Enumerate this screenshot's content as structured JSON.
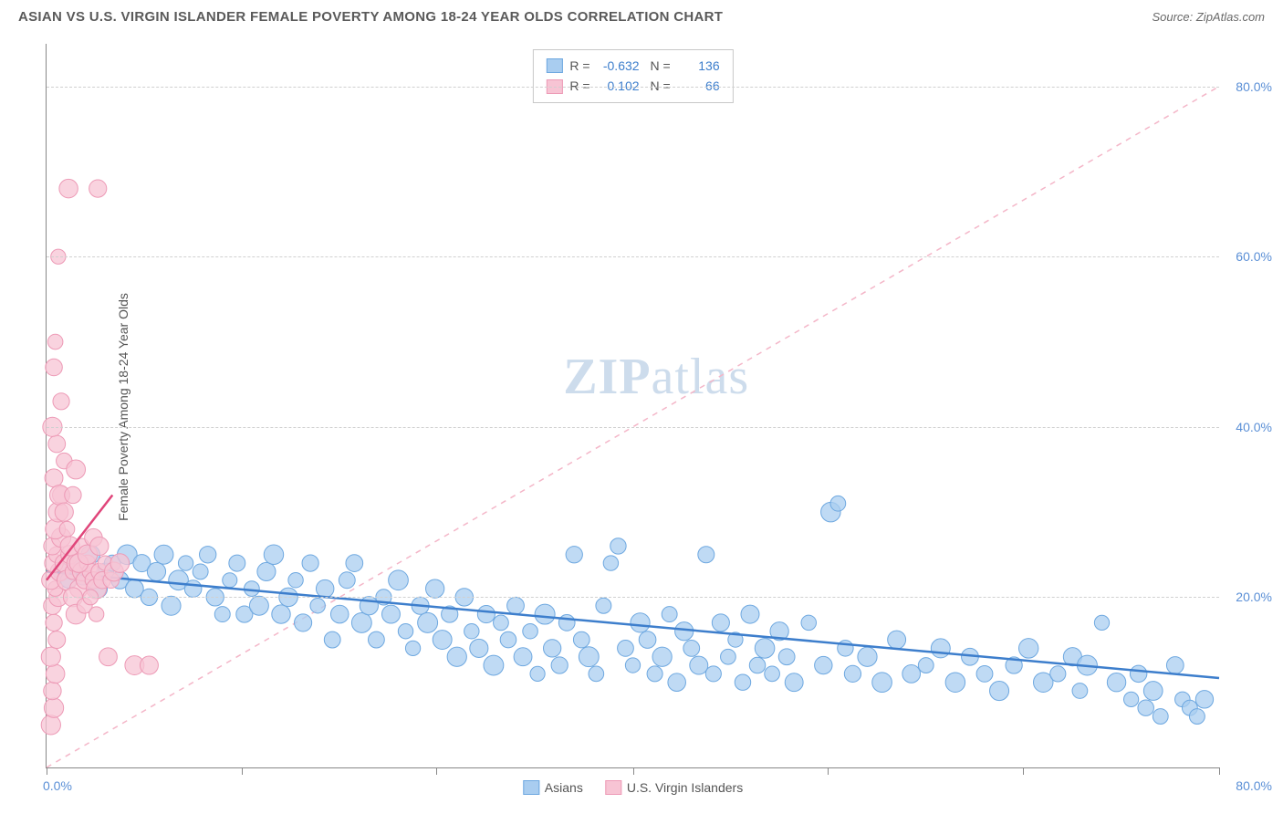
{
  "title": "ASIAN VS U.S. VIRGIN ISLANDER FEMALE POVERTY AMONG 18-24 YEAR OLDS CORRELATION CHART",
  "source": "Source: ZipAtlas.com",
  "y_axis_label": "Female Poverty Among 18-24 Year Olds",
  "watermark_a": "ZIP",
  "watermark_b": "atlas",
  "chart": {
    "type": "scatter",
    "xlim": [
      0,
      80
    ],
    "ylim": [
      0,
      85
    ],
    "x_ticks": [
      0,
      13.3,
      26.6,
      40,
      53.3,
      66.6,
      80
    ],
    "x_tick_labels_left": "0.0%",
    "x_tick_labels_right": "80.0%",
    "y_ticks": [
      20,
      40,
      60,
      80
    ],
    "y_tick_labels": [
      "20.0%",
      "40.0%",
      "60.0%",
      "80.0%"
    ],
    "background_color": "#ffffff",
    "grid_color": "#d0d0d0",
    "diagonal_color": "#f4b6c8",
    "series": [
      {
        "name": "Asians",
        "label": "Asians",
        "marker_fill": "#a9cdf0",
        "marker_stroke": "#6ea8e0",
        "marker_opacity": 0.75,
        "line_color": "#3d7ecc",
        "line_width": 2.5,
        "R": "-0.632",
        "N": "136",
        "trend": {
          "x1": 0,
          "y1": 23,
          "x2": 80,
          "y2": 10.5
        },
        "points": [
          [
            1,
            23
          ],
          [
            1.5,
            22
          ],
          [
            2,
            24
          ],
          [
            2.5,
            22.5
          ],
          [
            3,
            25
          ],
          [
            3.5,
            21
          ],
          [
            4,
            23
          ],
          [
            4.5,
            24
          ],
          [
            5,
            22
          ],
          [
            5.5,
            25
          ],
          [
            6,
            21
          ],
          [
            6.5,
            24
          ],
          [
            7,
            20
          ],
          [
            7.5,
            23
          ],
          [
            8,
            25
          ],
          [
            8.5,
            19
          ],
          [
            9,
            22
          ],
          [
            9.5,
            24
          ],
          [
            10,
            21
          ],
          [
            10.5,
            23
          ],
          [
            11,
            25
          ],
          [
            11.5,
            20
          ],
          [
            12,
            18
          ],
          [
            12.5,
            22
          ],
          [
            13,
            24
          ],
          [
            13.5,
            18
          ],
          [
            14,
            21
          ],
          [
            14.5,
            19
          ],
          [
            15,
            23
          ],
          [
            15.5,
            25
          ],
          [
            16,
            18
          ],
          [
            16.5,
            20
          ],
          [
            17,
            22
          ],
          [
            17.5,
            17
          ],
          [
            18,
            24
          ],
          [
            18.5,
            19
          ],
          [
            19,
            21
          ],
          [
            19.5,
            15
          ],
          [
            20,
            18
          ],
          [
            20.5,
            22
          ],
          [
            21,
            24
          ],
          [
            21.5,
            17
          ],
          [
            22,
            19
          ],
          [
            22.5,
            15
          ],
          [
            23,
            20
          ],
          [
            23.5,
            18
          ],
          [
            24,
            22
          ],
          [
            24.5,
            16
          ],
          [
            25,
            14
          ],
          [
            25.5,
            19
          ],
          [
            26,
            17
          ],
          [
            26.5,
            21
          ],
          [
            27,
            15
          ],
          [
            27.5,
            18
          ],
          [
            28,
            13
          ],
          [
            28.5,
            20
          ],
          [
            29,
            16
          ],
          [
            29.5,
            14
          ],
          [
            30,
            18
          ],
          [
            30.5,
            12
          ],
          [
            31,
            17
          ],
          [
            31.5,
            15
          ],
          [
            32,
            19
          ],
          [
            32.5,
            13
          ],
          [
            33,
            16
          ],
          [
            33.5,
            11
          ],
          [
            34,
            18
          ],
          [
            34.5,
            14
          ],
          [
            35,
            12
          ],
          [
            35.5,
            17
          ],
          [
            36,
            25
          ],
          [
            36.5,
            15
          ],
          [
            37,
            13
          ],
          [
            37.5,
            11
          ],
          [
            38,
            19
          ],
          [
            38.5,
            24
          ],
          [
            39,
            26
          ],
          [
            39.5,
            14
          ],
          [
            40,
            12
          ],
          [
            40.5,
            17
          ],
          [
            41,
            15
          ],
          [
            41.5,
            11
          ],
          [
            42,
            13
          ],
          [
            42.5,
            18
          ],
          [
            43,
            10
          ],
          [
            43.5,
            16
          ],
          [
            44,
            14
          ],
          [
            44.5,
            12
          ],
          [
            45,
            25
          ],
          [
            45.5,
            11
          ],
          [
            46,
            17
          ],
          [
            46.5,
            13
          ],
          [
            47,
            15
          ],
          [
            47.5,
            10
          ],
          [
            48,
            18
          ],
          [
            48.5,
            12
          ],
          [
            49,
            14
          ],
          [
            49.5,
            11
          ],
          [
            50,
            16
          ],
          [
            50.5,
            13
          ],
          [
            51,
            10
          ],
          [
            52,
            17
          ],
          [
            53,
            12
          ],
          [
            53.5,
            30
          ],
          [
            54,
            31
          ],
          [
            54.5,
            14
          ],
          [
            55,
            11
          ],
          [
            56,
            13
          ],
          [
            57,
            10
          ],
          [
            58,
            15
          ],
          [
            59,
            11
          ],
          [
            60,
            12
          ],
          [
            61,
            14
          ],
          [
            62,
            10
          ],
          [
            63,
            13
          ],
          [
            64,
            11
          ],
          [
            65,
            9
          ],
          [
            66,
            12
          ],
          [
            67,
            14
          ],
          [
            68,
            10
          ],
          [
            69,
            11
          ],
          [
            70,
            13
          ],
          [
            70.5,
            9
          ],
          [
            71,
            12
          ],
          [
            72,
            17
          ],
          [
            73,
            10
          ],
          [
            74,
            8
          ],
          [
            74.5,
            11
          ],
          [
            75,
            7
          ],
          [
            75.5,
            9
          ],
          [
            76,
            6
          ],
          [
            77,
            12
          ],
          [
            77.5,
            8
          ],
          [
            78,
            7
          ],
          [
            78.5,
            6
          ],
          [
            79,
            8
          ]
        ]
      },
      {
        "name": "U.S. Virgin Islanders",
        "label": "U.S. Virgin Islanders",
        "marker_fill": "#f7c4d4",
        "marker_stroke": "#ed9ab6",
        "marker_opacity": 0.75,
        "line_color": "#e0457a",
        "line_width": 2.5,
        "R": "0.102",
        "N": "66",
        "trend": {
          "x1": 0,
          "y1": 22,
          "x2": 4.5,
          "y2": 32
        },
        "points": [
          [
            0.3,
            5
          ],
          [
            0.5,
            7
          ],
          [
            0.4,
            9
          ],
          [
            0.6,
            11
          ],
          [
            0.3,
            13
          ],
          [
            0.7,
            15
          ],
          [
            0.5,
            17
          ],
          [
            0.4,
            19
          ],
          [
            0.8,
            20
          ],
          [
            0.6,
            21
          ],
          [
            0.3,
            22
          ],
          [
            0.9,
            23
          ],
          [
            0.5,
            24
          ],
          [
            0.7,
            25
          ],
          [
            0.4,
            26
          ],
          [
            1.0,
            27
          ],
          [
            0.6,
            28
          ],
          [
            1.2,
            24
          ],
          [
            0.8,
            30
          ],
          [
            1.4,
            22
          ],
          [
            1.0,
            32
          ],
          [
            1.6,
            25
          ],
          [
            0.5,
            34
          ],
          [
            1.8,
            23
          ],
          [
            1.2,
            36
          ],
          [
            2.0,
            24
          ],
          [
            0.7,
            38
          ],
          [
            2.2,
            21
          ],
          [
            1.4,
            28
          ],
          [
            2.4,
            23
          ],
          [
            0.9,
            32
          ],
          [
            2.6,
            22
          ],
          [
            1.6,
            26
          ],
          [
            2.8,
            24
          ],
          [
            1.8,
            20
          ],
          [
            3.0,
            23
          ],
          [
            2.0,
            18
          ],
          [
            3.2,
            22
          ],
          [
            2.2,
            24
          ],
          [
            3.4,
            21
          ],
          [
            2.4,
            26
          ],
          [
            3.6,
            23
          ],
          [
            2.6,
            19
          ],
          [
            3.8,
            22
          ],
          [
            2.8,
            25
          ],
          [
            4.0,
            24
          ],
          [
            3.0,
            20
          ],
          [
            4.2,
            13
          ],
          [
            3.2,
            27
          ],
          [
            4.4,
            22
          ],
          [
            3.4,
            18
          ],
          [
            4.6,
            23
          ],
          [
            3.6,
            26
          ],
          [
            5.0,
            24
          ],
          [
            6.0,
            12
          ],
          [
            7.0,
            12
          ],
          [
            0.5,
            47
          ],
          [
            1.0,
            43
          ],
          [
            0.8,
            60
          ],
          [
            1.5,
            68
          ],
          [
            3.5,
            68
          ],
          [
            0.6,
            50
          ],
          [
            1.2,
            30
          ],
          [
            2.0,
            35
          ],
          [
            0.4,
            40
          ],
          [
            1.8,
            32
          ]
        ]
      }
    ]
  },
  "legend_bottom": [
    {
      "label": "Asians",
      "fill": "#a9cdf0",
      "stroke": "#6ea8e0"
    },
    {
      "label": "U.S. Virgin Islanders",
      "fill": "#f7c4d4",
      "stroke": "#ed9ab6"
    }
  ]
}
